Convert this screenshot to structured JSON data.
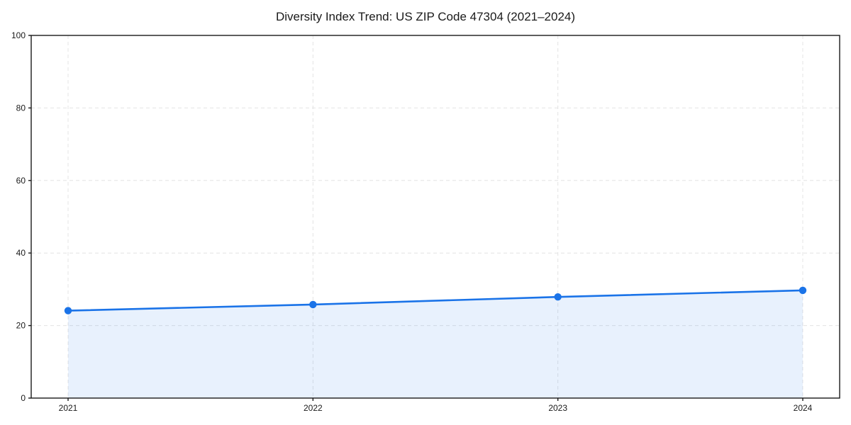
{
  "chart_data": {
    "type": "area",
    "title": "Diversity Index Trend: US ZIP Code 47304 (2021–2024)",
    "x": [
      2021,
      2022,
      2023,
      2024
    ],
    "xtick_labels": [
      "2021",
      "2022",
      "2023",
      "2024"
    ],
    "series": [
      {
        "name": "Diversity Index",
        "values": [
          24.1,
          25.8,
          27.9,
          29.7
        ]
      }
    ],
    "xlabel": "",
    "ylabel": "",
    "ylim": [
      0,
      100
    ],
    "yticks": [
      0,
      20,
      40,
      60,
      80,
      100
    ],
    "grid": "dashed",
    "legend_position": "none",
    "colors": {
      "line": "#1a73e8",
      "marker": "#1a73e8",
      "fill": "rgba(26,115,232,0.10)",
      "grid": "#e4e4e4",
      "spine": "#1a1a1a",
      "text": "#1a1a1a"
    }
  }
}
